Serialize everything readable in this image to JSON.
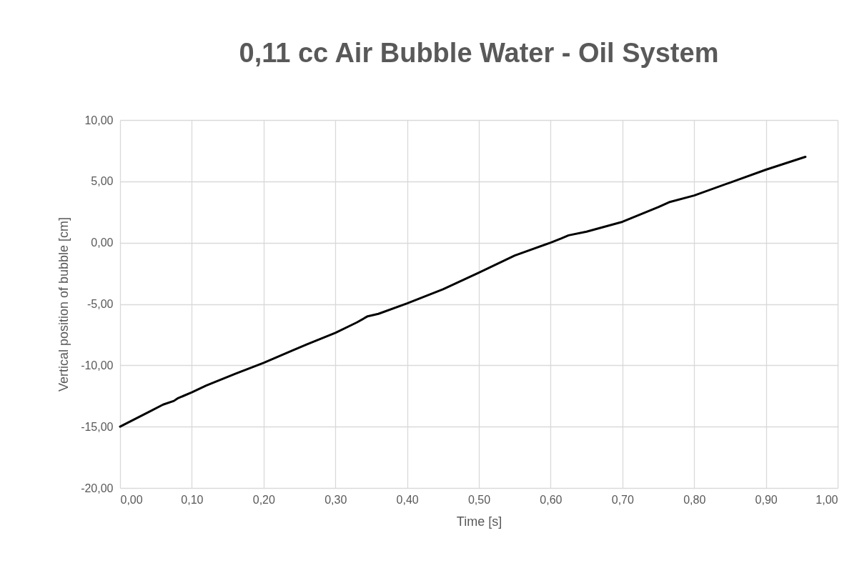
{
  "chart_data": {
    "type": "line",
    "title": "0,11 cc Air Bubble Water - Oil System",
    "xlabel": "Time [s]",
    "ylabel": "Vertical position of bubble [cm]",
    "x": [
      0,
      0.02,
      0.04,
      0.06,
      0.075,
      0.08,
      0.1,
      0.12,
      0.16,
      0.2,
      0.24,
      0.26,
      0.3,
      0.33,
      0.345,
      0.36,
      0.4,
      0.45,
      0.5,
      0.55,
      0.6,
      0.615,
      0.625,
      0.65,
      0.7,
      0.75,
      0.765,
      0.8,
      0.85,
      0.9,
      0.955
    ],
    "series": [
      {
        "color": "#000000",
        "values": [
          -15,
          -14.4,
          -13.8,
          -13.2,
          -12.9,
          -12.7,
          -12.2,
          -11.65,
          -10.7,
          -9.8,
          -8.8,
          -8.3,
          -7.35,
          -6.5,
          -6,
          -5.8,
          -4.95,
          -3.8,
          -2.45,
          -1.05,
          0,
          0.35,
          0.6,
          0.9,
          1.7,
          2.9,
          3.3,
          3.85,
          4.9,
          5.95,
          7
        ]
      }
    ],
    "xlim": [
      0,
      1
    ],
    "xticks": [
      {
        "value": 0,
        "label": "0,00"
      },
      {
        "value": 0.1,
        "label": "0,10"
      },
      {
        "value": 0.2,
        "label": "0,20"
      },
      {
        "value": 0.3,
        "label": "0,30"
      },
      {
        "value": 0.4,
        "label": "0,40"
      },
      {
        "value": 0.5,
        "label": "0,50"
      },
      {
        "value": 0.6,
        "label": "0,60"
      },
      {
        "value": 0.7,
        "label": "0,70"
      },
      {
        "value": 0.8,
        "label": "0,80"
      },
      {
        "value": 0.9,
        "label": "0,90"
      },
      {
        "value": 1,
        "label": "1,00"
      }
    ],
    "ylim": [
      -20,
      10
    ],
    "yticks": [
      {
        "value": -20,
        "label": "-20,00"
      },
      {
        "value": -15,
        "label": "-15,00"
      },
      {
        "value": -10,
        "label": "-10,00"
      },
      {
        "value": -5,
        "label": "-5,00"
      },
      {
        "value": 0,
        "label": "0,00"
      },
      {
        "value": 5,
        "label": "5,00"
      },
      {
        "value": 10,
        "label": "10,00"
      }
    ],
    "grid": true,
    "legend": false,
    "marker": "none",
    "line_style": "solid"
  }
}
